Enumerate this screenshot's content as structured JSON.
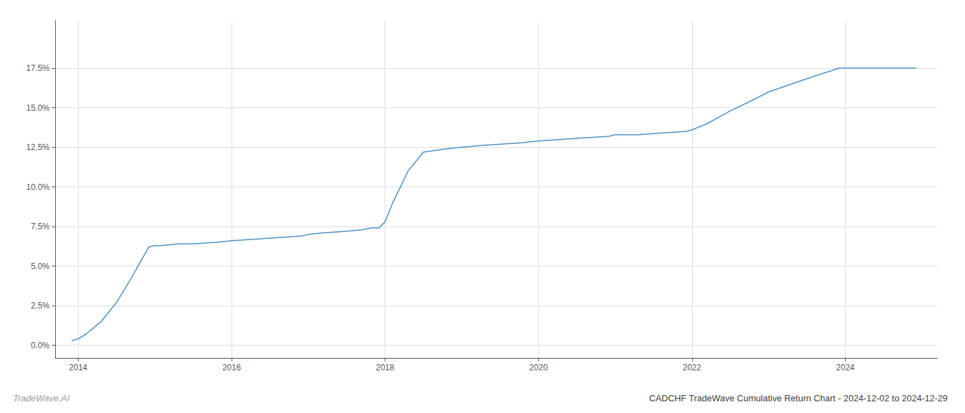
{
  "chart_data": {
    "type": "line",
    "title": "CADCHF TradeWave Cumulative Return Chart - 2024-12-02 to 2024-12-29",
    "annotations": [
      "TradeWave.AI"
    ],
    "x": [
      2013.92,
      2014.0,
      2014.1,
      2014.3,
      2014.5,
      2014.7,
      2014.92,
      2015.0,
      2015.1,
      2015.3,
      2015.5,
      2015.8,
      2016.0,
      2016.3,
      2016.6,
      2016.92,
      2017.0,
      2017.2,
      2017.5,
      2017.7,
      2017.82,
      2017.92,
      2018.0,
      2018.1,
      2018.3,
      2018.5,
      2018.8,
      2019.0,
      2019.2,
      2019.5,
      2019.8,
      2020.0,
      2020.3,
      2020.6,
      2020.92,
      2021.0,
      2021.3,
      2021.6,
      2021.92,
      2022.0,
      2022.2,
      2022.5,
      2022.8,
      2022.92,
      2023.0,
      2023.3,
      2023.6,
      2023.92,
      2024.0,
      2024.3,
      2024.6,
      2024.92
    ],
    "values": [
      0.003,
      0.004,
      0.007,
      0.015,
      0.027,
      0.043,
      0.062,
      0.063,
      0.063,
      0.064,
      0.064,
      0.065,
      0.066,
      0.067,
      0.068,
      0.069,
      0.07,
      0.071,
      0.072,
      0.073,
      0.074,
      0.074,
      0.078,
      0.09,
      0.11,
      0.122,
      0.124,
      0.125,
      0.126,
      0.127,
      0.128,
      0.129,
      0.13,
      0.131,
      0.132,
      0.133,
      0.133,
      0.134,
      0.135,
      0.136,
      0.14,
      0.148,
      0.155,
      0.158,
      0.16,
      0.165,
      0.17,
      0.175,
      0.175,
      0.175,
      0.175,
      0.175
    ],
    "color": "#4a90c4",
    "xlim": [
      2013.7,
      2025.2
    ],
    "xticks": [
      2014,
      2016,
      2018,
      2020,
      2022,
      2024
    ],
    "ylim": [
      -0.008,
      0.205
    ],
    "yticks": [
      {
        "value": 0.0,
        "label": "0.0%"
      },
      {
        "value": 0.025,
        "label": "2.5%"
      },
      {
        "value": 0.05,
        "label": "5.0%"
      },
      {
        "value": 0.075,
        "label": "7.5%"
      },
      {
        "value": 0.1,
        "label": "10.0%"
      },
      {
        "value": 0.125,
        "label": "12.5%"
      },
      {
        "value": 0.15,
        "label": "15.0%"
      },
      {
        "value": 0.175,
        "label": "17.5%"
      }
    ],
    "grid": true
  }
}
